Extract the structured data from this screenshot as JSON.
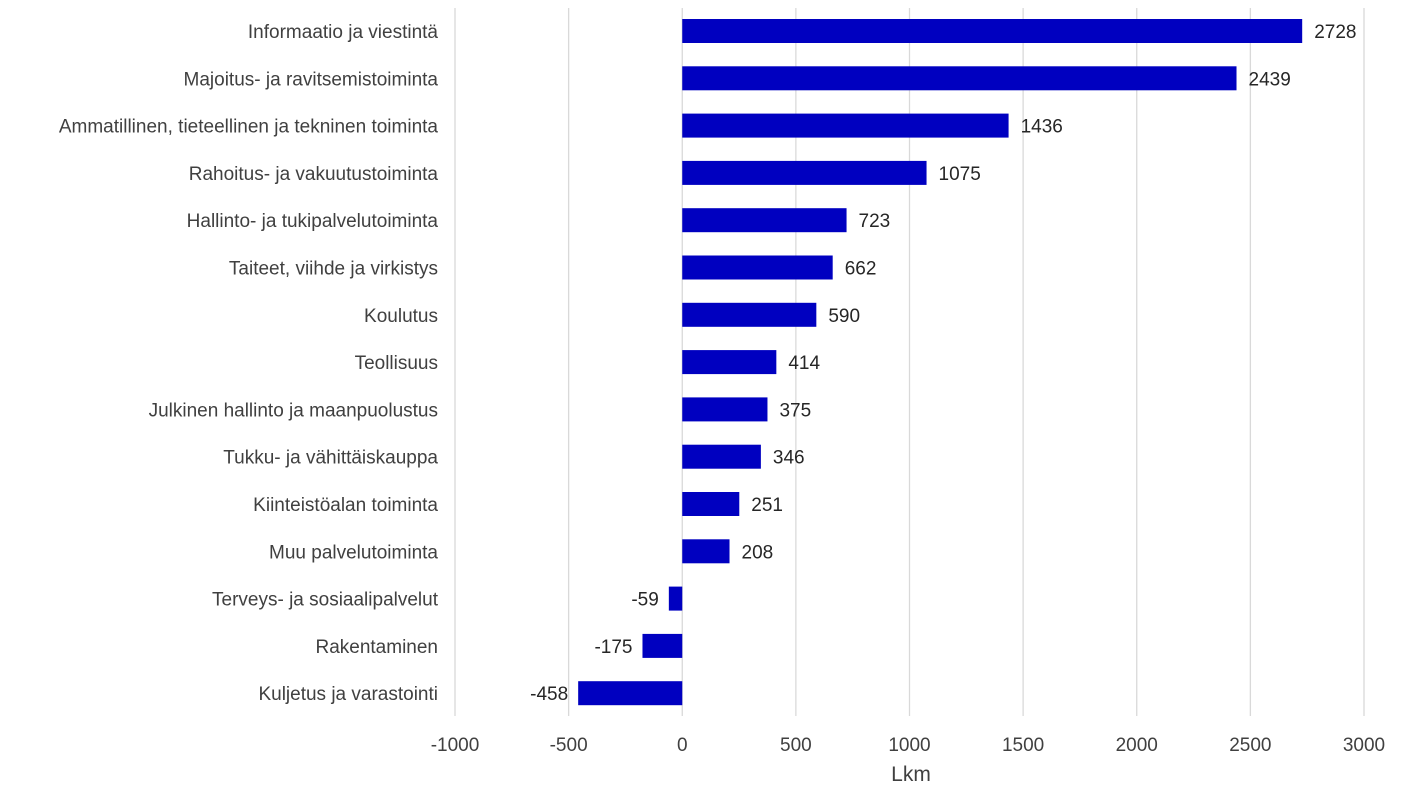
{
  "chart_data": {
    "type": "bar",
    "orientation": "horizontal",
    "categories": [
      "Informaatio ja viestintä",
      "Majoitus- ja ravitsemistoiminta",
      "Ammatillinen, tieteellinen ja tekninen toiminta",
      "Rahoitus- ja vakuutustoiminta",
      "Hallinto- ja tukipalvelutoiminta",
      "Taiteet, viihde ja virkistys",
      "Koulutus",
      "Teollisuus",
      "Julkinen hallinto ja maanpuolustus",
      "Tukku- ja vähittäiskauppa",
      "Kiinteistöalan toiminta",
      "Muu palvelutoiminta",
      "Terveys- ja sosiaalipalvelut",
      "Rakentaminen",
      "Kuljetus ja varastointi"
    ],
    "values": [
      2728,
      2439,
      1436,
      1075,
      723,
      662,
      590,
      414,
      375,
      346,
      251,
      208,
      -59,
      -175,
      -458
    ],
    "data_labels": [
      "2728",
      "2439",
      "1436",
      "1075",
      "723",
      "662",
      "590",
      "414",
      "375",
      "346",
      "251",
      "208",
      "-59",
      "-175",
      "-458"
    ],
    "xlabel": "Lkm",
    "xlim": [
      -1000,
      3000
    ],
    "xticks": [
      -1000,
      -500,
      0,
      500,
      1000,
      1500,
      2000,
      2500,
      3000
    ],
    "xtick_labels": [
      "-1000",
      "-500",
      "0",
      "500",
      "1000",
      "1500",
      "2000",
      "2500",
      "3000"
    ],
    "grid": "vertical",
    "legend": "none",
    "colors": {
      "bar": "#0000c0",
      "grid": "#d9d9d9",
      "text": "#404040"
    }
  }
}
